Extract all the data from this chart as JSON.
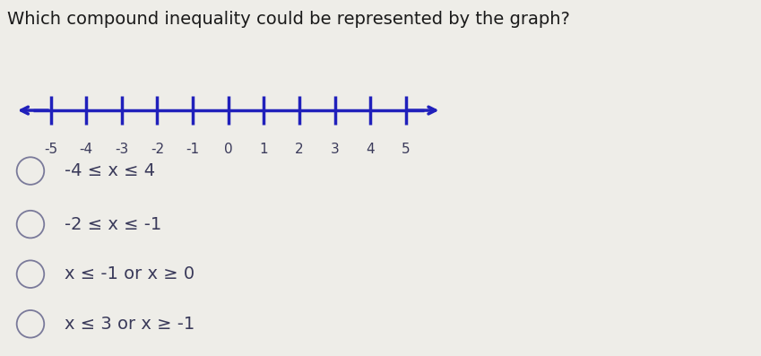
{
  "title": "Which compound inequality could be represented by the graph?",
  "title_fontsize": 14,
  "title_color": "#1a1a1a",
  "bg_color": "#eeede8",
  "number_line_color": "#2020bb",
  "number_line_lw": 2.5,
  "tick_positions": [
    -5,
    -4,
    -3,
    -2,
    -1,
    0,
    1,
    2,
    3,
    4,
    5
  ],
  "tick_labels": [
    "-5",
    "-4",
    "-3",
    "-2",
    "-1",
    "0",
    "1",
    "2",
    "3",
    "4",
    "5"
  ],
  "x_min": -6.0,
  "x_max": 6.0,
  "choices": [
    "-4 ≤ x ≤ 4",
    "-2 ≤ x ≤ -1",
    "x ≤ -1 or x ≥ 0",
    "x ≤ 3 or x ≥ -1"
  ],
  "choice_fontsize": 14,
  "choice_color": "#3a3a5a",
  "circle_color": "#7a7a9a",
  "tick_label_fontsize": 11,
  "tick_label_color": "#3a3a5a"
}
